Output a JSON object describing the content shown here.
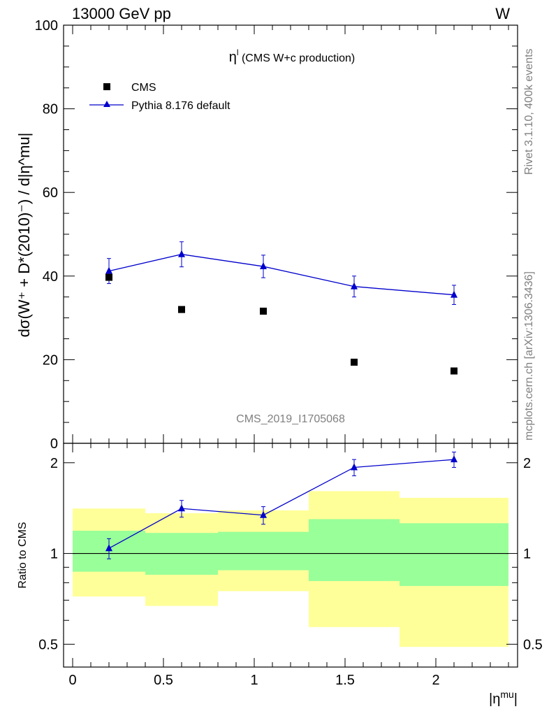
{
  "header": {
    "left": "13000 GeV pp",
    "right": "W"
  },
  "side_labels": {
    "rivet": "Rivet 3.1.10,  400k events",
    "mcplots": "mcplots.cern.ch [arXiv:1306.3436]"
  },
  "watermark": "CMS_2019_I1705068",
  "chart_data": [
    {
      "type": "scatter",
      "title": "η^l (CMS W+c production)",
      "title_main": "η",
      "title_sup": "l",
      "title_rest": " (CMS W+c production)",
      "ylabel": "dσ(W⁺ + D*(2010)⁻) / d|η^mu|",
      "ylim": [
        0,
        100
      ],
      "yticks": [
        "0",
        "20",
        "40",
        "60",
        "80",
        "100"
      ],
      "x": [
        0.2,
        0.6,
        1.05,
        1.55,
        2.1
      ],
      "series": [
        {
          "name": "CMS",
          "color": "#000000",
          "marker": "square",
          "values": [
            39.7,
            32.0,
            31.6,
            19.4,
            17.3
          ]
        },
        {
          "name": "Pythia 8.176 default",
          "color": "#0000cc",
          "marker": "triangle",
          "values": [
            41.2,
            45.2,
            42.3,
            37.5,
            35.5
          ],
          "err": [
            3.0,
            3.0,
            2.7,
            2.5,
            2.3
          ]
        }
      ],
      "legend": "top-left"
    },
    {
      "type": "line",
      "ylabel": "Ratio to CMS",
      "xlabel": "|η^mu|",
      "xlim": [
        -0.05,
        2.45
      ],
      "ylim": [
        0.42,
        2.32
      ],
      "yscale": "log",
      "xticks": [
        "0",
        "0.5",
        "1",
        "1.5",
        "2"
      ],
      "yticks": [
        "0.5",
        "1",
        "2"
      ],
      "x": [
        0.2,
        0.6,
        1.05,
        1.55,
        2.1
      ],
      "ratio": [
        1.04,
        1.41,
        1.34,
        1.93,
        2.05
      ],
      "ratio_err": [
        0.08,
        0.09,
        0.09,
        0.12,
        0.12
      ],
      "bins": [
        {
          "lo": 0.0,
          "hi": 0.4,
          "green": [
            0.87,
            1.19
          ],
          "yellow": [
            0.72,
            1.41
          ]
        },
        {
          "lo": 0.4,
          "hi": 0.8,
          "green": [
            0.85,
            1.17
          ],
          "yellow": [
            0.67,
            1.36
          ]
        },
        {
          "lo": 0.8,
          "hi": 1.3,
          "green": [
            0.88,
            1.18
          ],
          "yellow": [
            0.75,
            1.39
          ]
        },
        {
          "lo": 1.3,
          "hi": 1.8,
          "green": [
            0.81,
            1.3
          ],
          "yellow": [
            0.57,
            1.61
          ]
        },
        {
          "lo": 1.8,
          "hi": 2.4,
          "green": [
            0.78,
            1.26
          ],
          "yellow": [
            0.49,
            1.53
          ]
        }
      ],
      "band_colors": {
        "green": "#99ff99",
        "yellow": "#ffff99"
      },
      "ref_line": 1
    }
  ]
}
